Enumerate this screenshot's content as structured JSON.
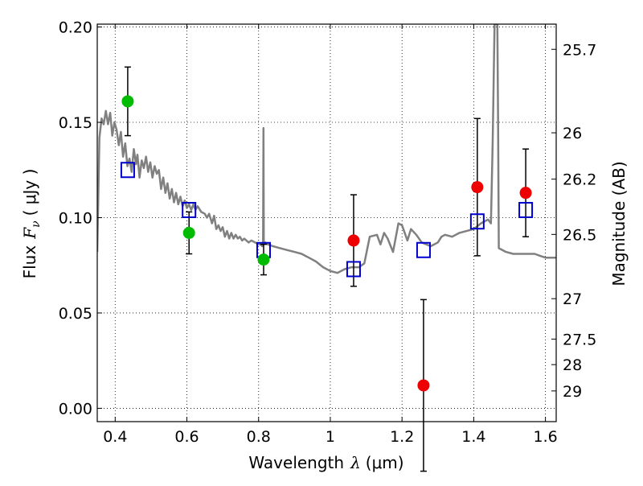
{
  "chart_data": {
    "type": "scatter",
    "xlabel": "Wavelength",
    "xlabel_symbol": "λ",
    "xlabel_unit": "(μm)",
    "ylabel": "Flux",
    "ylabel_symbol": "F",
    "ylabel_subscript": "ν",
    "ylabel_unit": "( μJy )",
    "y2label": "Magnitude (AB)",
    "xlim": [
      0.35,
      1.63
    ],
    "ylim": [
      -0.007,
      0.2015
    ],
    "grid": true,
    "grid_style": "dotted",
    "x_ticks": [
      0.4,
      0.6,
      0.8,
      1.0,
      1.2,
      1.4,
      1.6
    ],
    "x_tick_labels": [
      "0.4",
      "0.6",
      "0.8",
      "1",
      "1.2",
      "1.4",
      "1.6"
    ],
    "y_ticks": [
      0.0,
      0.05,
      0.1,
      0.15,
      0.2
    ],
    "y_tick_labels": [
      "0.00",
      "0.05",
      "0.10",
      "0.15",
      "0.20"
    ],
    "y2_ticks": [
      {
        "label": "25.7",
        "flux": 0.1883
      },
      {
        "label": "26",
        "flux": 0.1445
      },
      {
        "label": "26.2",
        "flux": 0.1202
      },
      {
        "label": "26.5",
        "flux": 0.0912
      },
      {
        "label": "27",
        "flux": 0.0575
      },
      {
        "label": "27.5",
        "flux": 0.0363
      },
      {
        "label": "28",
        "flux": 0.0229
      },
      {
        "label": "29",
        "flux": 0.0091
      }
    ],
    "colors": {
      "green": "#00bb00",
      "red": "#ee0000",
      "square": "#0000cc",
      "sed": "#808080",
      "errorbar": "#000000"
    },
    "observed_green": [
      {
        "x": 0.435,
        "y": 0.161,
        "err": 0.018
      },
      {
        "x": 0.606,
        "y": 0.092,
        "err": 0.011
      },
      {
        "x": 0.814,
        "y": 0.078,
        "err": 0.008
      }
    ],
    "observed_red": [
      {
        "x": 1.065,
        "y": 0.088,
        "err": 0.024
      },
      {
        "x": 1.26,
        "y": 0.012,
        "err": 0.045
      },
      {
        "x": 1.41,
        "y": 0.116,
        "err": 0.036
      },
      {
        "x": 1.545,
        "y": 0.113,
        "err": 0.023
      }
    ],
    "model_squares": [
      {
        "x": 0.435,
        "y": 0.125
      },
      {
        "x": 0.606,
        "y": 0.104
      },
      {
        "x": 0.814,
        "y": 0.083
      },
      {
        "x": 1.065,
        "y": 0.073
      },
      {
        "x": 1.26,
        "y": 0.083
      },
      {
        "x": 1.41,
        "y": 0.098
      },
      {
        "x": 1.545,
        "y": 0.104
      }
    ],
    "sed_curve": [
      [
        0.35,
        0.082
      ],
      [
        0.356,
        0.142
      ],
      [
        0.362,
        0.152
      ],
      [
        0.368,
        0.149
      ],
      [
        0.374,
        0.156
      ],
      [
        0.38,
        0.149
      ],
      [
        0.386,
        0.155
      ],
      [
        0.392,
        0.143
      ],
      [
        0.398,
        0.15
      ],
      [
        0.404,
        0.146
      ],
      [
        0.41,
        0.138
      ],
      [
        0.416,
        0.145
      ],
      [
        0.422,
        0.132
      ],
      [
        0.428,
        0.139
      ],
      [
        0.434,
        0.127
      ],
      [
        0.44,
        0.131
      ],
      [
        0.446,
        0.124
      ],
      [
        0.452,
        0.136
      ],
      [
        0.458,
        0.128
      ],
      [
        0.462,
        0.133
      ],
      [
        0.468,
        0.121
      ],
      [
        0.474,
        0.13
      ],
      [
        0.48,
        0.126
      ],
      [
        0.486,
        0.132
      ],
      [
        0.492,
        0.124
      ],
      [
        0.498,
        0.129
      ],
      [
        0.504,
        0.121
      ],
      [
        0.51,
        0.127
      ],
      [
        0.516,
        0.123
      ],
      [
        0.522,
        0.125
      ],
      [
        0.528,
        0.115
      ],
      [
        0.534,
        0.121
      ],
      [
        0.54,
        0.113
      ],
      [
        0.546,
        0.118
      ],
      [
        0.552,
        0.11
      ],
      [
        0.558,
        0.115
      ],
      [
        0.564,
        0.108
      ],
      [
        0.57,
        0.113
      ],
      [
        0.576,
        0.107
      ],
      [
        0.582,
        0.111
      ],
      [
        0.588,
        0.106
      ],
      [
        0.594,
        0.109
      ],
      [
        0.6,
        0.105
      ],
      [
        0.606,
        0.107
      ],
      [
        0.612,
        0.104
      ],
      [
        0.618,
        0.107
      ],
      [
        0.624,
        0.104
      ],
      [
        0.63,
        0.106
      ],
      [
        0.64,
        0.103
      ],
      [
        0.65,
        0.102
      ],
      [
        0.656,
        0.1
      ],
      [
        0.662,
        0.102
      ],
      [
        0.67,
        0.097
      ],
      [
        0.676,
        0.101
      ],
      [
        0.682,
        0.094
      ],
      [
        0.688,
        0.096
      ],
      [
        0.694,
        0.093
      ],
      [
        0.7,
        0.095
      ],
      [
        0.706,
        0.09
      ],
      [
        0.712,
        0.093
      ],
      [
        0.718,
        0.089
      ],
      [
        0.724,
        0.092
      ],
      [
        0.73,
        0.089
      ],
      [
        0.736,
        0.091
      ],
      [
        0.742,
        0.089
      ],
      [
        0.748,
        0.09
      ],
      [
        0.754,
        0.088
      ],
      [
        0.76,
        0.089
      ],
      [
        0.766,
        0.088
      ],
      [
        0.772,
        0.087
      ],
      [
        0.78,
        0.088
      ],
      [
        0.79,
        0.087
      ],
      [
        0.8,
        0.086
      ],
      [
        0.806,
        0.086
      ],
      [
        0.81,
        0.085
      ],
      [
        0.8125,
        0.086
      ],
      [
        0.8135,
        0.147
      ],
      [
        0.8145,
        0.086
      ],
      [
        0.818,
        0.087
      ],
      [
        0.826,
        0.086
      ],
      [
        0.84,
        0.085
      ],
      [
        0.86,
        0.084
      ],
      [
        0.88,
        0.083
      ],
      [
        0.9,
        0.082
      ],
      [
        0.92,
        0.081
      ],
      [
        0.94,
        0.079
      ],
      [
        0.96,
        0.077
      ],
      [
        0.98,
        0.074
      ],
      [
        1.0,
        0.072
      ],
      [
        1.02,
        0.071
      ],
      [
        1.04,
        0.073
      ],
      [
        1.06,
        0.074
      ],
      [
        1.08,
        0.074
      ],
      [
        1.095,
        0.076
      ],
      [
        1.11,
        0.09
      ],
      [
        1.13,
        0.091
      ],
      [
        1.14,
        0.086
      ],
      [
        1.15,
        0.092
      ],
      [
        1.16,
        0.089
      ],
      [
        1.175,
        0.082
      ],
      [
        1.19,
        0.097
      ],
      [
        1.2,
        0.096
      ],
      [
        1.215,
        0.088
      ],
      [
        1.225,
        0.094
      ],
      [
        1.24,
        0.091
      ],
      [
        1.255,
        0.087
      ],
      [
        1.28,
        0.085
      ],
      [
        1.3,
        0.087
      ],
      [
        1.31,
        0.09
      ],
      [
        1.32,
        0.091
      ],
      [
        1.34,
        0.09
      ],
      [
        1.36,
        0.092
      ],
      [
        1.38,
        0.093
      ],
      [
        1.4,
        0.094
      ],
      [
        1.42,
        0.097
      ],
      [
        1.44,
        0.099
      ],
      [
        1.448,
        0.097
      ],
      [
        1.453,
        0.14
      ],
      [
        1.458,
        0.2015
      ],
      [
        1.466,
        0.2015
      ],
      [
        1.468,
        0.15
      ],
      [
        1.47,
        0.084
      ],
      [
        1.49,
        0.082
      ],
      [
        1.51,
        0.081
      ],
      [
        1.53,
        0.081
      ],
      [
        1.55,
        0.081
      ],
      [
        1.57,
        0.081
      ],
      [
        1.585,
        0.08
      ],
      [
        1.6,
        0.079
      ],
      [
        1.63,
        0.079
      ]
    ]
  }
}
